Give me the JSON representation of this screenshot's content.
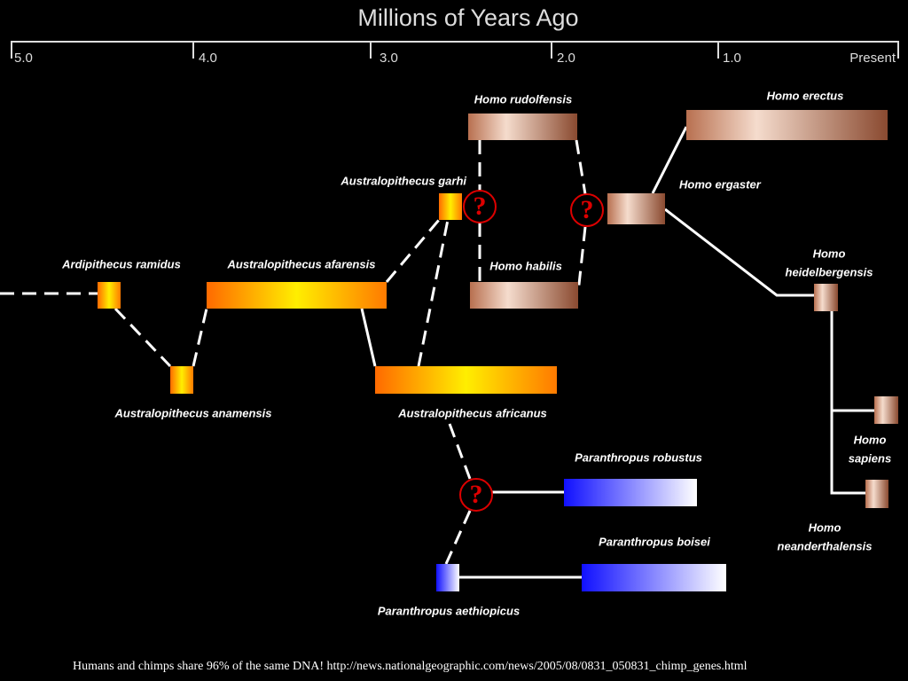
{
  "header": {
    "title": "Millions of Years Ago"
  },
  "axis": {
    "ticks": [
      "5.0",
      "4.0",
      "3.0",
      "2.0",
      "1.0",
      "Present"
    ]
  },
  "nodes": [
    {
      "label": [
        "Ardipithecus ramidus"
      ]
    },
    {
      "label": [
        "Australopithecus afarensis"
      ]
    },
    {
      "label": [
        "Australopithecus anamensis"
      ]
    },
    {
      "label": [
        "Australopithecus garhi"
      ]
    },
    {
      "label": [
        "Homo rudolfensis"
      ]
    },
    {
      "label": [
        "Homo habilis"
      ]
    },
    {
      "label": [
        "Australopithecus africanus"
      ]
    },
    {
      "label": [
        "Homo erectus"
      ]
    },
    {
      "label": [
        "Homo ergaster"
      ]
    },
    {
      "label": [
        "Homo",
        "heidelbergensis"
      ]
    },
    {
      "label": [
        "Homo",
        "sapiens"
      ]
    },
    {
      "label": [
        "Homo",
        "neanderthalensis"
      ]
    },
    {
      "label": [
        "Paranthropus robustus"
      ]
    },
    {
      "label": [
        "Paranthropus boisei"
      ]
    },
    {
      "label": [
        "Paranthropus aethiopicus"
      ]
    }
  ],
  "unknowns": [
    "?",
    "?",
    "?"
  ],
  "caption": "Humans and chimps share 96% of the same DNA!  http://news.nationalgeographic.com/news/2005/08/0831_050831_chimp_genes.html"
}
